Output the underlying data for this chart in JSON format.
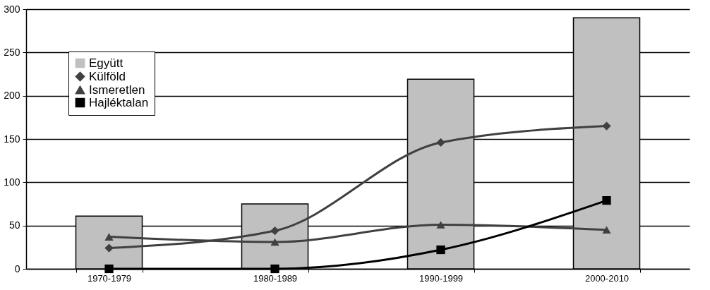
{
  "chart_data": {
    "type": "line",
    "categories": [
      "1970-1979",
      "1980-1989",
      "1990-1999",
      "2000-2010"
    ],
    "series": [
      {
        "name": "Együtt",
        "type": "bar",
        "color": "#c0c0c0",
        "values": [
          61,
          75,
          219,
          290
        ]
      },
      {
        "name": "Külföld",
        "color": "#404040",
        "marker": "diamond",
        "values": [
          24,
          44,
          146,
          165
        ]
      },
      {
        "name": "Ismeretlen",
        "color": "#404040",
        "marker": "triangle",
        "values": [
          37,
          31,
          51,
          45
        ]
      },
      {
        "name": "Hajléktalan",
        "color": "#000000",
        "marker": "square",
        "values": [
          0,
          0,
          22,
          79
        ]
      }
    ],
    "ylim": [
      0,
      300
    ],
    "yticks": [
      0,
      50,
      100,
      150,
      200,
      250,
      300
    ],
    "grid": "y",
    "legend": "top left"
  }
}
